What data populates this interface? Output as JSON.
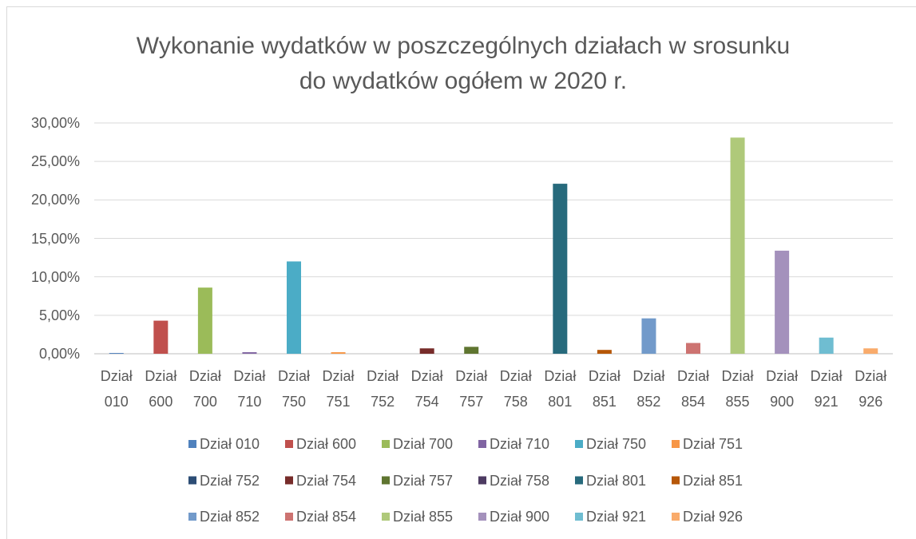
{
  "chart_data": {
    "type": "bar",
    "title": "Wykonanie wydatków w poszczególnych działach w srosunku do wydatków ogółem w 2020 r.",
    "categories": [
      "Dział 010",
      "Dział 600",
      "Dział 700",
      "Dział 710",
      "Dział 750",
      "Dział 751",
      "Dział 752",
      "Dział 754",
      "Dział 757",
      "Dział 758",
      "Dział 801",
      "Dział 851",
      "Dział 852",
      "Dział 854",
      "Dział 855",
      "Dział 900",
      "Dział 921",
      "Dział 926"
    ],
    "values": [
      0.1,
      4.3,
      8.6,
      0.2,
      12.0,
      0.2,
      0.0,
      0.7,
      0.9,
      0.0,
      22.1,
      0.5,
      4.6,
      1.4,
      28.1,
      13.4,
      2.1,
      0.7
    ],
    "colors": [
      "#4f81bd",
      "#c0504d",
      "#9bbb59",
      "#8064a2",
      "#4bacc6",
      "#f79646",
      "#2c4d75",
      "#772c2a",
      "#5f7530",
      "#4d3b62",
      "#276a7c",
      "#b65708",
      "#729aca",
      "#cd7371",
      "#afc97a",
      "#a491bc",
      "#6fbdd1",
      "#f9ab6b"
    ],
    "ylim": [
      0,
      30
    ],
    "yticks": [
      {
        "value": 0,
        "label": "0,00%"
      },
      {
        "value": 5,
        "label": "5,00%"
      },
      {
        "value": 10,
        "label": "10,00%"
      },
      {
        "value": 15,
        "label": "15,00%"
      },
      {
        "value": 20,
        "label": "20,00%"
      },
      {
        "value": 25,
        "label": "25,00%"
      },
      {
        "value": 30,
        "label": "30,00%"
      }
    ],
    "grid": true,
    "legend": "bottom"
  }
}
